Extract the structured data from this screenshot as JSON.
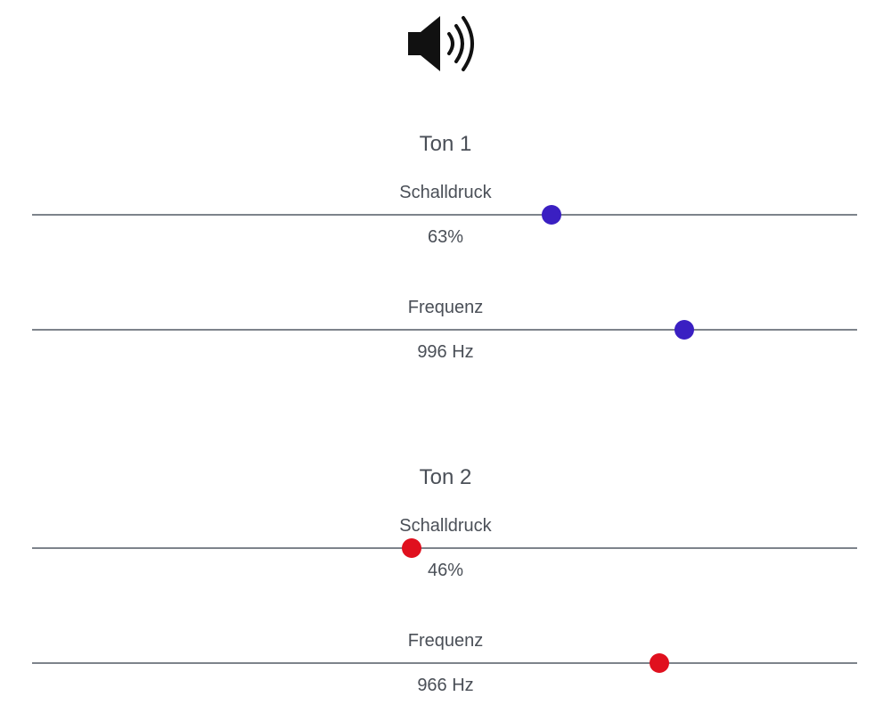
{
  "speaker": {
    "icon": "speaker-volume-icon"
  },
  "tone1": {
    "title": "Ton 1",
    "color": "#3a1fc2",
    "pressure": {
      "label": "Schalldruck",
      "value_text": "63%",
      "position": 0.63
    },
    "frequency": {
      "label": "Frequenz",
      "value_text": "996 Hz",
      "position": 0.79
    }
  },
  "tone2": {
    "title": "Ton 2",
    "color": "#e0101e",
    "pressure": {
      "label": "Schalldruck",
      "value_text": "46%",
      "position": 0.46
    },
    "frequency": {
      "label": "Frequenz",
      "value_text": "966 Hz",
      "position": 0.76
    }
  }
}
